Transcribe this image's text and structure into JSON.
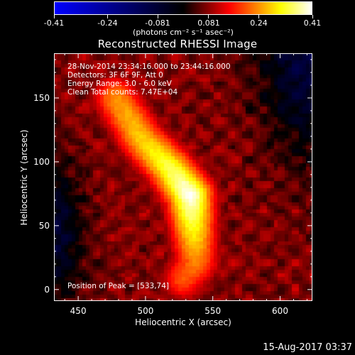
{
  "colorbar": {
    "tick_labels": [
      "-0.41",
      "-0.24",
      "-0.081",
      "0.081",
      "0.24",
      "0.41"
    ],
    "tick_values": [
      -0.41,
      -0.24,
      -0.081,
      0.081,
      0.24,
      0.41
    ],
    "range": [
      -0.41,
      0.41
    ],
    "units": "(photons cm⁻² s⁻¹ asec⁻²)",
    "colormap": [
      "#0000ff",
      "#000000",
      "#ff0000",
      "#ffff00",
      "#ffffff"
    ]
  },
  "chart_data": {
    "type": "heatmap",
    "title": "Reconstructed RHESSI Image",
    "xlabel": "Heliocentric X (arcsec)",
    "ylabel": "Heliocentric Y (arcsec)",
    "xlim": [
      432,
      624
    ],
    "ylim": [
      -9,
      185
    ],
    "xticks": [
      450,
      500,
      550,
      600
    ],
    "yticks": [
      0,
      50,
      100,
      150
    ],
    "annotations": {
      "time": "28-Nov-2014 23:34:16.000 to 23:44:16.000",
      "detectors": "Detectors: 3F 6F 9F, Att 0",
      "energy": "Energy Range: 3.0 - 6.0 keV",
      "method": "Clean     Total counts: 7.47E+04",
      "peak": "Position of Peak = [533,74]"
    },
    "peak_position": [
      533,
      74
    ],
    "peak_value": 0.41,
    "source_ridge": [
      [
        478,
        150,
        0.24
      ],
      [
        497,
        118,
        0.28
      ],
      [
        518,
        95,
        0.34
      ],
      [
        533,
        74,
        0.41
      ],
      [
        538,
        22,
        0.23
      ],
      [
        528,
        8,
        0.2
      ]
    ]
  },
  "footer": {
    "date": "15-Aug-2017 03:37"
  }
}
